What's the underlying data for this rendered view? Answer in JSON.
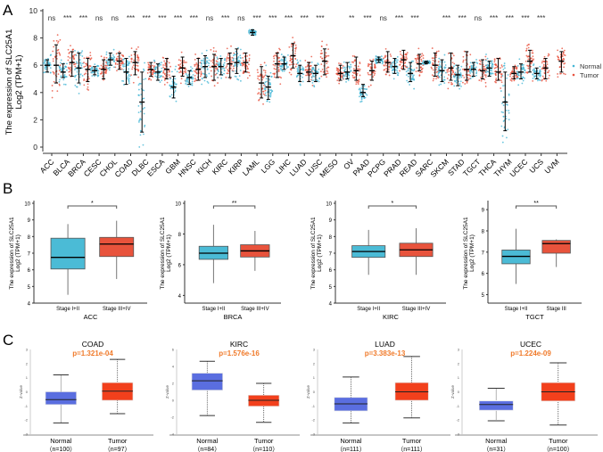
{
  "panel_labels": [
    "A",
    "B",
    "C"
  ],
  "chart_data": [
    {
      "type": "scatter",
      "panel": "A",
      "ylabel": "The expression of SLC25A1",
      "ylabel2": "Log2 (TPM+1)",
      "ylim": [
        0,
        10
      ],
      "yticks": [
        0,
        2,
        4,
        6,
        8,
        10
      ],
      "legend": {
        "placement": "right",
        "entries": [
          "Normal",
          "Tumor"
        ]
      },
      "colors": {
        "Normal": "#45b6d6",
        "Tumor": "#e8523f"
      },
      "categories": [
        "ACC",
        "BLCA",
        "BRCA",
        "CESC",
        "CHOL",
        "COAD",
        "DLBC",
        "ESCA",
        "GBM",
        "HNSC",
        "KICH",
        "KIRC",
        "KIRP",
        "LAML",
        "LGG",
        "LIHC",
        "LUAD",
        "LUSC",
        "MESO",
        "OV",
        "PAAD",
        "PCPG",
        "PRAD",
        "READ",
        "SARC",
        "SKCM",
        "STAD",
        "TGCT",
        "THCA",
        "THYM",
        "UCEC",
        "UCS",
        "UVM"
      ],
      "significance": [
        "ns",
        "***",
        "***",
        "ns",
        "ns",
        "***",
        "***",
        "***",
        "***",
        "***",
        "ns",
        "***",
        "ns",
        "***",
        "***",
        "***",
        "***",
        "***",
        "",
        "**",
        "***",
        "ns",
        "***",
        "***",
        "",
        "***",
        "***",
        "ns",
        "***",
        "***",
        "***",
        "***",
        ""
      ],
      "series": [
        {
          "name": "Normal",
          "median": [
            6.0,
            5.5,
            5.8,
            5.6,
            6.4,
            5.5,
            3.3,
            5.5,
            4.4,
            5.1,
            5.9,
            5.9,
            6.2,
            8.4,
            4.4,
            6.1,
            5.4,
            5.4,
            null,
            5.5,
            4.0,
            6.4,
            5.9,
            5.4,
            6.2,
            5.6,
            5.3,
            5.7,
            5.8,
            3.3,
            5.5,
            5.4,
            null
          ],
          "low": [
            5.5,
            5.1,
            4.7,
            5.3,
            6.0,
            4.6,
            1.1,
            4.9,
            3.6,
            4.6,
            5.1,
            5.3,
            5.4,
            8.2,
            3.5,
            5.7,
            4.8,
            4.8,
            null,
            5.0,
            3.7,
            6.2,
            5.4,
            4.8,
            6.1,
            4.8,
            4.5,
            5.2,
            5.2,
            1.2,
            5.0,
            5.0,
            null
          ],
          "high": [
            6.4,
            6.1,
            6.9,
            5.9,
            6.9,
            6.5,
            5.5,
            6.1,
            5.2,
            5.6,
            6.7,
            6.5,
            7.2,
            8.6,
            5.2,
            6.6,
            6.0,
            6.0,
            null,
            6.2,
            4.6,
            6.6,
            6.5,
            6.2,
            6.3,
            6.4,
            6.0,
            6.2,
            6.3,
            5.5,
            6.1,
            5.8,
            null
          ]
        },
        {
          "name": "Tumor",
          "median": [
            6.0,
            6.2,
            5.7,
            5.7,
            6.3,
            6.2,
            5.7,
            5.7,
            5.8,
            5.7,
            5.9,
            6.1,
            6.2,
            4.7,
            6.1,
            6.7,
            5.5,
            6.3,
            5.4,
            5.6,
            5.6,
            6.2,
            6.4,
            6.1,
            6.0,
            5.8,
            5.7,
            5.6,
            5.5,
            5.4,
            6.3,
            5.8,
            6.3
          ],
          "low": [
            4.7,
            5.2,
            4.8,
            5.0,
            5.7,
            5.3,
            5.2,
            5.0,
            5.2,
            4.9,
            4.9,
            5.1,
            5.5,
            3.6,
            5.1,
            5.8,
            4.8,
            5.3,
            4.9,
            4.9,
            4.9,
            5.5,
            5.7,
            5.6,
            5.2,
            4.9,
            4.9,
            5.0,
            4.9,
            5.0,
            5.5,
            5.0,
            5.5
          ],
          "high": [
            7.5,
            7.0,
            6.5,
            6.4,
            6.9,
            7.0,
            6.2,
            6.5,
            6.6,
            6.5,
            6.8,
            6.9,
            6.9,
            5.9,
            6.9,
            7.6,
            6.2,
            7.2,
            6.0,
            6.6,
            6.3,
            7.0,
            7.1,
            6.8,
            6.9,
            6.9,
            7.0,
            6.4,
            6.5,
            5.9,
            7.1,
            6.5,
            7.0
          ]
        }
      ]
    },
    {
      "type": "box",
      "panel": "B",
      "plots": [
        {
          "title": "ACC",
          "ylim": [
            4,
            10
          ],
          "yticks": [
            4,
            5,
            6,
            7,
            8,
            9,
            10
          ],
          "significance": "*",
          "groups": [
            {
              "label": "Stage I+II",
              "stats": [
                4.5,
                6.05,
                6.75,
                7.9,
                8.75
              ]
            },
            {
              "label": "Stage III+IV",
              "stats": [
                5.45,
                6.8,
                7.55,
                7.95,
                8.95
              ]
            }
          ]
        },
        {
          "title": "BRCA",
          "ylim": [
            3.5,
            10
          ],
          "yticks": [
            4,
            6,
            8,
            10
          ],
          "significance": "**",
          "groups": [
            {
              "label": "Stage I+II",
              "stats": [
                4.8,
                6.35,
                6.75,
                7.2,
                8.6
              ]
            },
            {
              "label": "Stage III+IV",
              "stats": [
                5.6,
                6.5,
                6.9,
                7.3,
                8.2
              ]
            }
          ]
        },
        {
          "title": "KIRC",
          "ylim": [
            4,
            10
          ],
          "yticks": [
            4,
            5,
            6,
            7,
            8,
            9,
            10
          ],
          "significance": "*",
          "groups": [
            {
              "label": "Stage I+II",
              "stats": [
                5.7,
                6.75,
                7.1,
                7.45,
                8.4
              ]
            },
            {
              "label": "Stage III+IV",
              "stats": [
                5.7,
                6.8,
                7.2,
                7.6,
                8.5
              ]
            }
          ]
        },
        {
          "title": "TGCT",
          "ylim": [
            4.6,
            9.3
          ],
          "yticks": [
            5,
            6,
            7,
            8,
            9
          ],
          "significance": "**",
          "groups": [
            {
              "label": "Stage I+II",
              "stats": [
                5.5,
                6.45,
                6.8,
                7.1,
                8.1
              ]
            },
            {
              "label": "Stage III",
              "stats": [
                6.3,
                6.95,
                7.4,
                7.55,
                7.6
              ]
            }
          ]
        }
      ],
      "ylabel": "The expression of SLC25A1",
      "ylabel2": "Log2 (TPM+1)",
      "colors": [
        "#4bbbd6",
        "#e8533c"
      ]
    },
    {
      "type": "box",
      "panel": "C",
      "ylabel": "Z-value",
      "colors": [
        "#5a6ee0",
        "#f2401c"
      ],
      "pcolor": "#f07a2a",
      "plots": [
        {
          "title": "COAD",
          "p": "p=1.321e-04",
          "ylim": [
            -3,
            3
          ],
          "yticks": [
            -3,
            -2,
            -1,
            0,
            1,
            2,
            3
          ],
          "groups": [
            {
              "label": "Normal",
              "n": "（n=100）",
              "stats": [
                -2.2,
                -0.9,
                -0.55,
                0,
                1.2
              ]
            },
            {
              "label": "Tumor",
              "n": "（n=97）",
              "stats": [
                -1.55,
                -0.6,
                0.05,
                0.65,
                2.3
              ]
            }
          ]
        },
        {
          "title": "KIRC",
          "p": "p=1.576e-16",
          "ylim": [
            -4,
            6
          ],
          "yticks": [
            -4,
            -2,
            0,
            2,
            4,
            6
          ],
          "groups": [
            {
              "label": "Normal",
              "n": "（n=84）",
              "stats": [
                -1.8,
                1.2,
                2.3,
                3.2,
                4.6
              ]
            },
            {
              "label": "Tumor",
              "n": "（n=110）",
              "stats": [
                -2.6,
                -0.7,
                0,
                0.6,
                2.0
              ]
            }
          ]
        },
        {
          "title": "LUAD",
          "p": "p=3.383e-13",
          "ylim": [
            -3,
            3
          ],
          "yticks": [
            -3,
            -2,
            -1,
            0,
            1,
            2,
            3
          ],
          "groups": [
            {
              "label": "Normal",
              "n": "（n=111）",
              "stats": [
                -2.2,
                -1.35,
                -0.85,
                -0.4,
                1.05
              ]
            },
            {
              "label": "Tumor",
              "n": "（n=111）",
              "stats": [
                -1.85,
                -0.6,
                0,
                0.65,
                2.5
              ]
            }
          ]
        },
        {
          "title": "UCEC",
          "p": "p=1.224e-09",
          "ylim": [
            -3,
            3
          ],
          "yticks": [
            -3,
            -2,
            -1,
            0,
            1,
            2,
            3
          ],
          "groups": [
            {
              "label": "Normal",
              "n": "（n=31）",
              "stats": [
                -2.05,
                -1.3,
                -0.9,
                -0.65,
                0.25
              ]
            },
            {
              "label": "Tumor",
              "n": "（n=100）",
              "stats": [
                -2.35,
                -0.65,
                0,
                0.65,
                2.05
              ]
            }
          ]
        }
      ]
    }
  ]
}
